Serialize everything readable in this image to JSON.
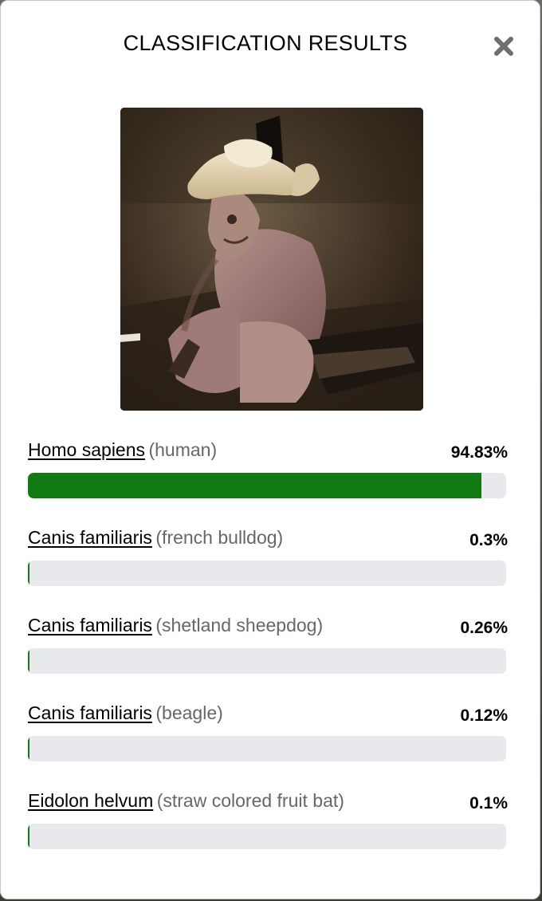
{
  "modal": {
    "title": "CLASSIFICATION RESULTS",
    "close_icon": "close-icon"
  },
  "results": [
    {
      "species": "Homo sapiens",
      "common": "(human)",
      "percent_label": "94.83%",
      "percent": 94.83
    },
    {
      "species": "Canis familiaris",
      "common": "(french bulldog)",
      "percent_label": "0.3%",
      "percent": 0.3
    },
    {
      "species": "Canis familiaris",
      "common": "(shetland sheepdog)",
      "percent_label": "0.26%",
      "percent": 0.26
    },
    {
      "species": "Canis familiaris",
      "common": "(beagle)",
      "percent_label": "0.12%",
      "percent": 0.12
    },
    {
      "species": "Eidolon helvum",
      "common": "(straw colored fruit bat)",
      "percent_label": "0.1%",
      "percent": 0.1
    }
  ],
  "colors": {
    "bar_fill": "#127a12",
    "bar_track": "#e7e9ec",
    "common_name": "#6b6565"
  }
}
